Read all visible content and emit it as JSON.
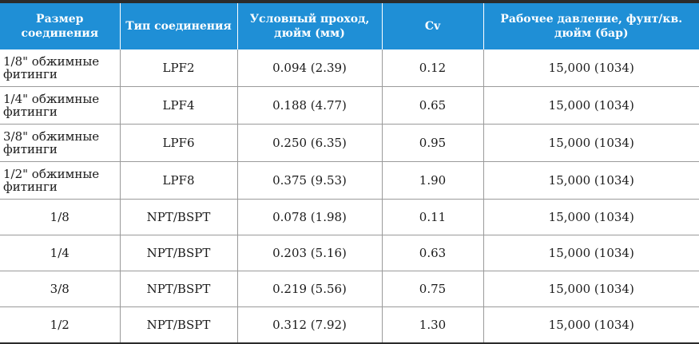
{
  "table": {
    "headers": [
      "Размер соединения",
      "Тип соединения",
      "Условный проход, дюйм (мм)",
      "Cv",
      "Рабочее давление, фунт/кв. дюйм (бар)"
    ],
    "rows": [
      {
        "size": "1/8\" обжимные фитинги",
        "type": "LPF2",
        "bore": "0.094 (2.39)",
        "cv": "0.12",
        "pressure": "15,000 (1034)"
      },
      {
        "size": "1/4\" обжимные фитинги",
        "type": "LPF4",
        "bore": "0.188 (4.77)",
        "cv": "0.65",
        "pressure": "15,000 (1034)"
      },
      {
        "size": "3/8\" обжимные фитинги",
        "type": "LPF6",
        "bore": "0.250 (6.35)",
        "cv": "0.95",
        "pressure": "15,000 (1034)"
      },
      {
        "size": "1/2\" обжимные фитинги",
        "type": "LPF8",
        "bore": "0.375 (9.53)",
        "cv": "1.90",
        "pressure": "15,000 (1034)"
      },
      {
        "size": "1/8",
        "type": "NPT/BSPT",
        "bore": "0.078 (1.98)",
        "cv": "0.11",
        "pressure": "15,000 (1034)"
      },
      {
        "size": "1/4",
        "type": "NPT/BSPT",
        "bore": "0.203 (5.16)",
        "cv": "0.63",
        "pressure": "15,000 (1034)"
      },
      {
        "size": "3/8",
        "type": "NPT/BSPT",
        "bore": "0.219 (5.56)",
        "cv": "0.75",
        "pressure": "15,000 (1034)"
      },
      {
        "size": "1/2",
        "type": "NPT/BSPT",
        "bore": "0.312 (7.92)",
        "cv": "1.30",
        "pressure": "15,000 (1034)"
      }
    ]
  },
  "colors": {
    "header_bg": "#1f8fd6",
    "header_text": "#ffffff",
    "rule": "#2b2b2b",
    "grid": "#9a9a9a"
  }
}
